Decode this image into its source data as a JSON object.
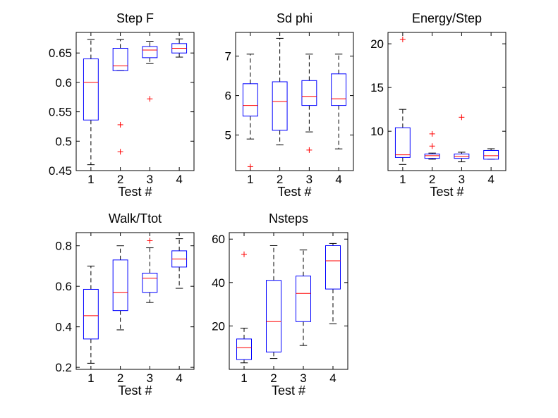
{
  "figure": {
    "background": "#ffffff",
    "box_color": "#0000ff",
    "median_color": "#ff0000",
    "outlier_color": "#ff0000",
    "whisker_color": "#000000"
  },
  "chart_data": [
    {
      "type": "boxplot",
      "title": "Step F",
      "xlabel": "Test #",
      "ylabel": "",
      "categories": [
        "1",
        "2",
        "3",
        "4"
      ],
      "ylim": [
        0.45,
        0.685
      ],
      "yticks": [
        0.45,
        0.5,
        0.55,
        0.6,
        0.65
      ],
      "ytick_labels": [
        "0.45",
        "0.5",
        "0.55",
        "0.6",
        "0.65"
      ],
      "boxes": [
        {
          "category": "1",
          "whisker_low": 0.46,
          "q1": 0.536,
          "median": 0.6,
          "q3": 0.64,
          "whisker_high": 0.673,
          "outliers": []
        },
        {
          "category": "2",
          "whisker_low": 0.62,
          "q1": 0.62,
          "median": 0.628,
          "q3": 0.658,
          "whisker_high": 0.673,
          "outliers": [
            0.528,
            0.482
          ]
        },
        {
          "category": "3",
          "whisker_low": 0.632,
          "q1": 0.642,
          "median": 0.655,
          "q3": 0.661,
          "whisker_high": 0.67,
          "outliers": [
            0.572
          ]
        },
        {
          "category": "4",
          "whisker_low": 0.643,
          "q1": 0.65,
          "median": 0.658,
          "q3": 0.666,
          "whisker_high": 0.674,
          "outliers": []
        }
      ]
    },
    {
      "type": "boxplot",
      "title": "Sd phi",
      "xlabel": "Test #",
      "ylabel": "",
      "categories": [
        "1",
        "2",
        "3",
        "4"
      ],
      "ylim": [
        4.1,
        7.6
      ],
      "yticks": [
        5,
        6,
        7
      ],
      "ytick_labels": [
        "5",
        "6",
        "7"
      ],
      "boxes": [
        {
          "category": "1",
          "whisker_low": 4.9,
          "q1": 5.48,
          "median": 5.75,
          "q3": 6.3,
          "whisker_high": 7.05,
          "outliers": [
            4.2
          ]
        },
        {
          "category": "2",
          "whisker_low": 4.75,
          "q1": 5.12,
          "median": 5.85,
          "q3": 6.35,
          "whisker_high": 7.45,
          "outliers": []
        },
        {
          "category": "3",
          "whisker_low": 5.08,
          "q1": 5.75,
          "median": 5.98,
          "q3": 6.38,
          "whisker_high": 7.05,
          "outliers": [
            4.62
          ]
        },
        {
          "category": "4",
          "whisker_low": 4.65,
          "q1": 5.75,
          "median": 5.92,
          "q3": 6.55,
          "whisker_high": 7.05,
          "outliers": []
        }
      ]
    },
    {
      "type": "boxplot",
      "title": "Energy/Step",
      "xlabel": "Test #",
      "ylabel": "",
      "categories": [
        "1",
        "2",
        "3",
        "4"
      ],
      "ylim": [
        5.5,
        21.3
      ],
      "yticks": [
        10,
        15,
        20
      ],
      "ytick_labels": [
        "10",
        "15",
        "20"
      ],
      "boxes": [
        {
          "category": "1",
          "whisker_low": 6.2,
          "q1": 7.0,
          "median": 7.3,
          "q3": 10.4,
          "whisker_high": 12.5,
          "outliers": [
            20.5
          ]
        },
        {
          "category": "2",
          "whisker_low": 6.8,
          "q1": 6.9,
          "median": 7.2,
          "q3": 7.4,
          "whisker_high": 7.5,
          "outliers": [
            9.7,
            8.3
          ]
        },
        {
          "category": "3",
          "whisker_low": 6.5,
          "q1": 6.9,
          "median": 7.1,
          "q3": 7.4,
          "whisker_high": 7.6,
          "outliers": [
            11.6
          ]
        },
        {
          "category": "4",
          "whisker_low": 6.8,
          "q1": 6.8,
          "median": 7.2,
          "q3": 7.8,
          "whisker_high": 8.0,
          "outliers": []
        }
      ]
    },
    {
      "type": "boxplot",
      "title": "Walk/Ttot",
      "xlabel": "Test #",
      "ylabel": "",
      "categories": [
        "1",
        "2",
        "3",
        "4"
      ],
      "ylim": [
        0.19,
        0.865
      ],
      "yticks": [
        0.2,
        0.4,
        0.6,
        0.8
      ],
      "ytick_labels": [
        "0.2",
        "0.4",
        "0.6",
        "0.8"
      ],
      "boxes": [
        {
          "category": "1",
          "whisker_low": 0.22,
          "q1": 0.34,
          "median": 0.455,
          "q3": 0.585,
          "whisker_high": 0.7,
          "outliers": []
        },
        {
          "category": "2",
          "whisker_low": 0.385,
          "q1": 0.48,
          "median": 0.57,
          "q3": 0.73,
          "whisker_high": 0.8,
          "outliers": []
        },
        {
          "category": "3",
          "whisker_low": 0.52,
          "q1": 0.57,
          "median": 0.64,
          "q3": 0.665,
          "whisker_high": 0.79,
          "outliers": [
            0.825
          ]
        },
        {
          "category": "4",
          "whisker_low": 0.59,
          "q1": 0.695,
          "median": 0.735,
          "q3": 0.775,
          "whisker_high": 0.835,
          "outliers": []
        }
      ]
    },
    {
      "type": "boxplot",
      "title": "Nsteps",
      "xlabel": "Test #",
      "ylabel": "",
      "categories": [
        "1",
        "2",
        "3",
        "4"
      ],
      "ylim": [
        0,
        63
      ],
      "yticks": [
        20,
        40,
        60
      ],
      "ytick_labels": [
        "20",
        "40",
        "60"
      ],
      "boxes": [
        {
          "category": "1",
          "whisker_low": 3,
          "q1": 4.5,
          "median": 10,
          "q3": 14,
          "whisker_high": 19,
          "outliers": [
            53
          ]
        },
        {
          "category": "2",
          "whisker_low": 5,
          "q1": 8,
          "median": 22,
          "q3": 41,
          "whisker_high": 57,
          "outliers": []
        },
        {
          "category": "3",
          "whisker_low": 11,
          "q1": 22,
          "median": 35,
          "q3": 43,
          "whisker_high": 55,
          "outliers": []
        },
        {
          "category": "4",
          "whisker_low": 21,
          "q1": 37,
          "median": 50,
          "q3": 57,
          "whisker_high": 58,
          "outliers": []
        }
      ]
    }
  ]
}
